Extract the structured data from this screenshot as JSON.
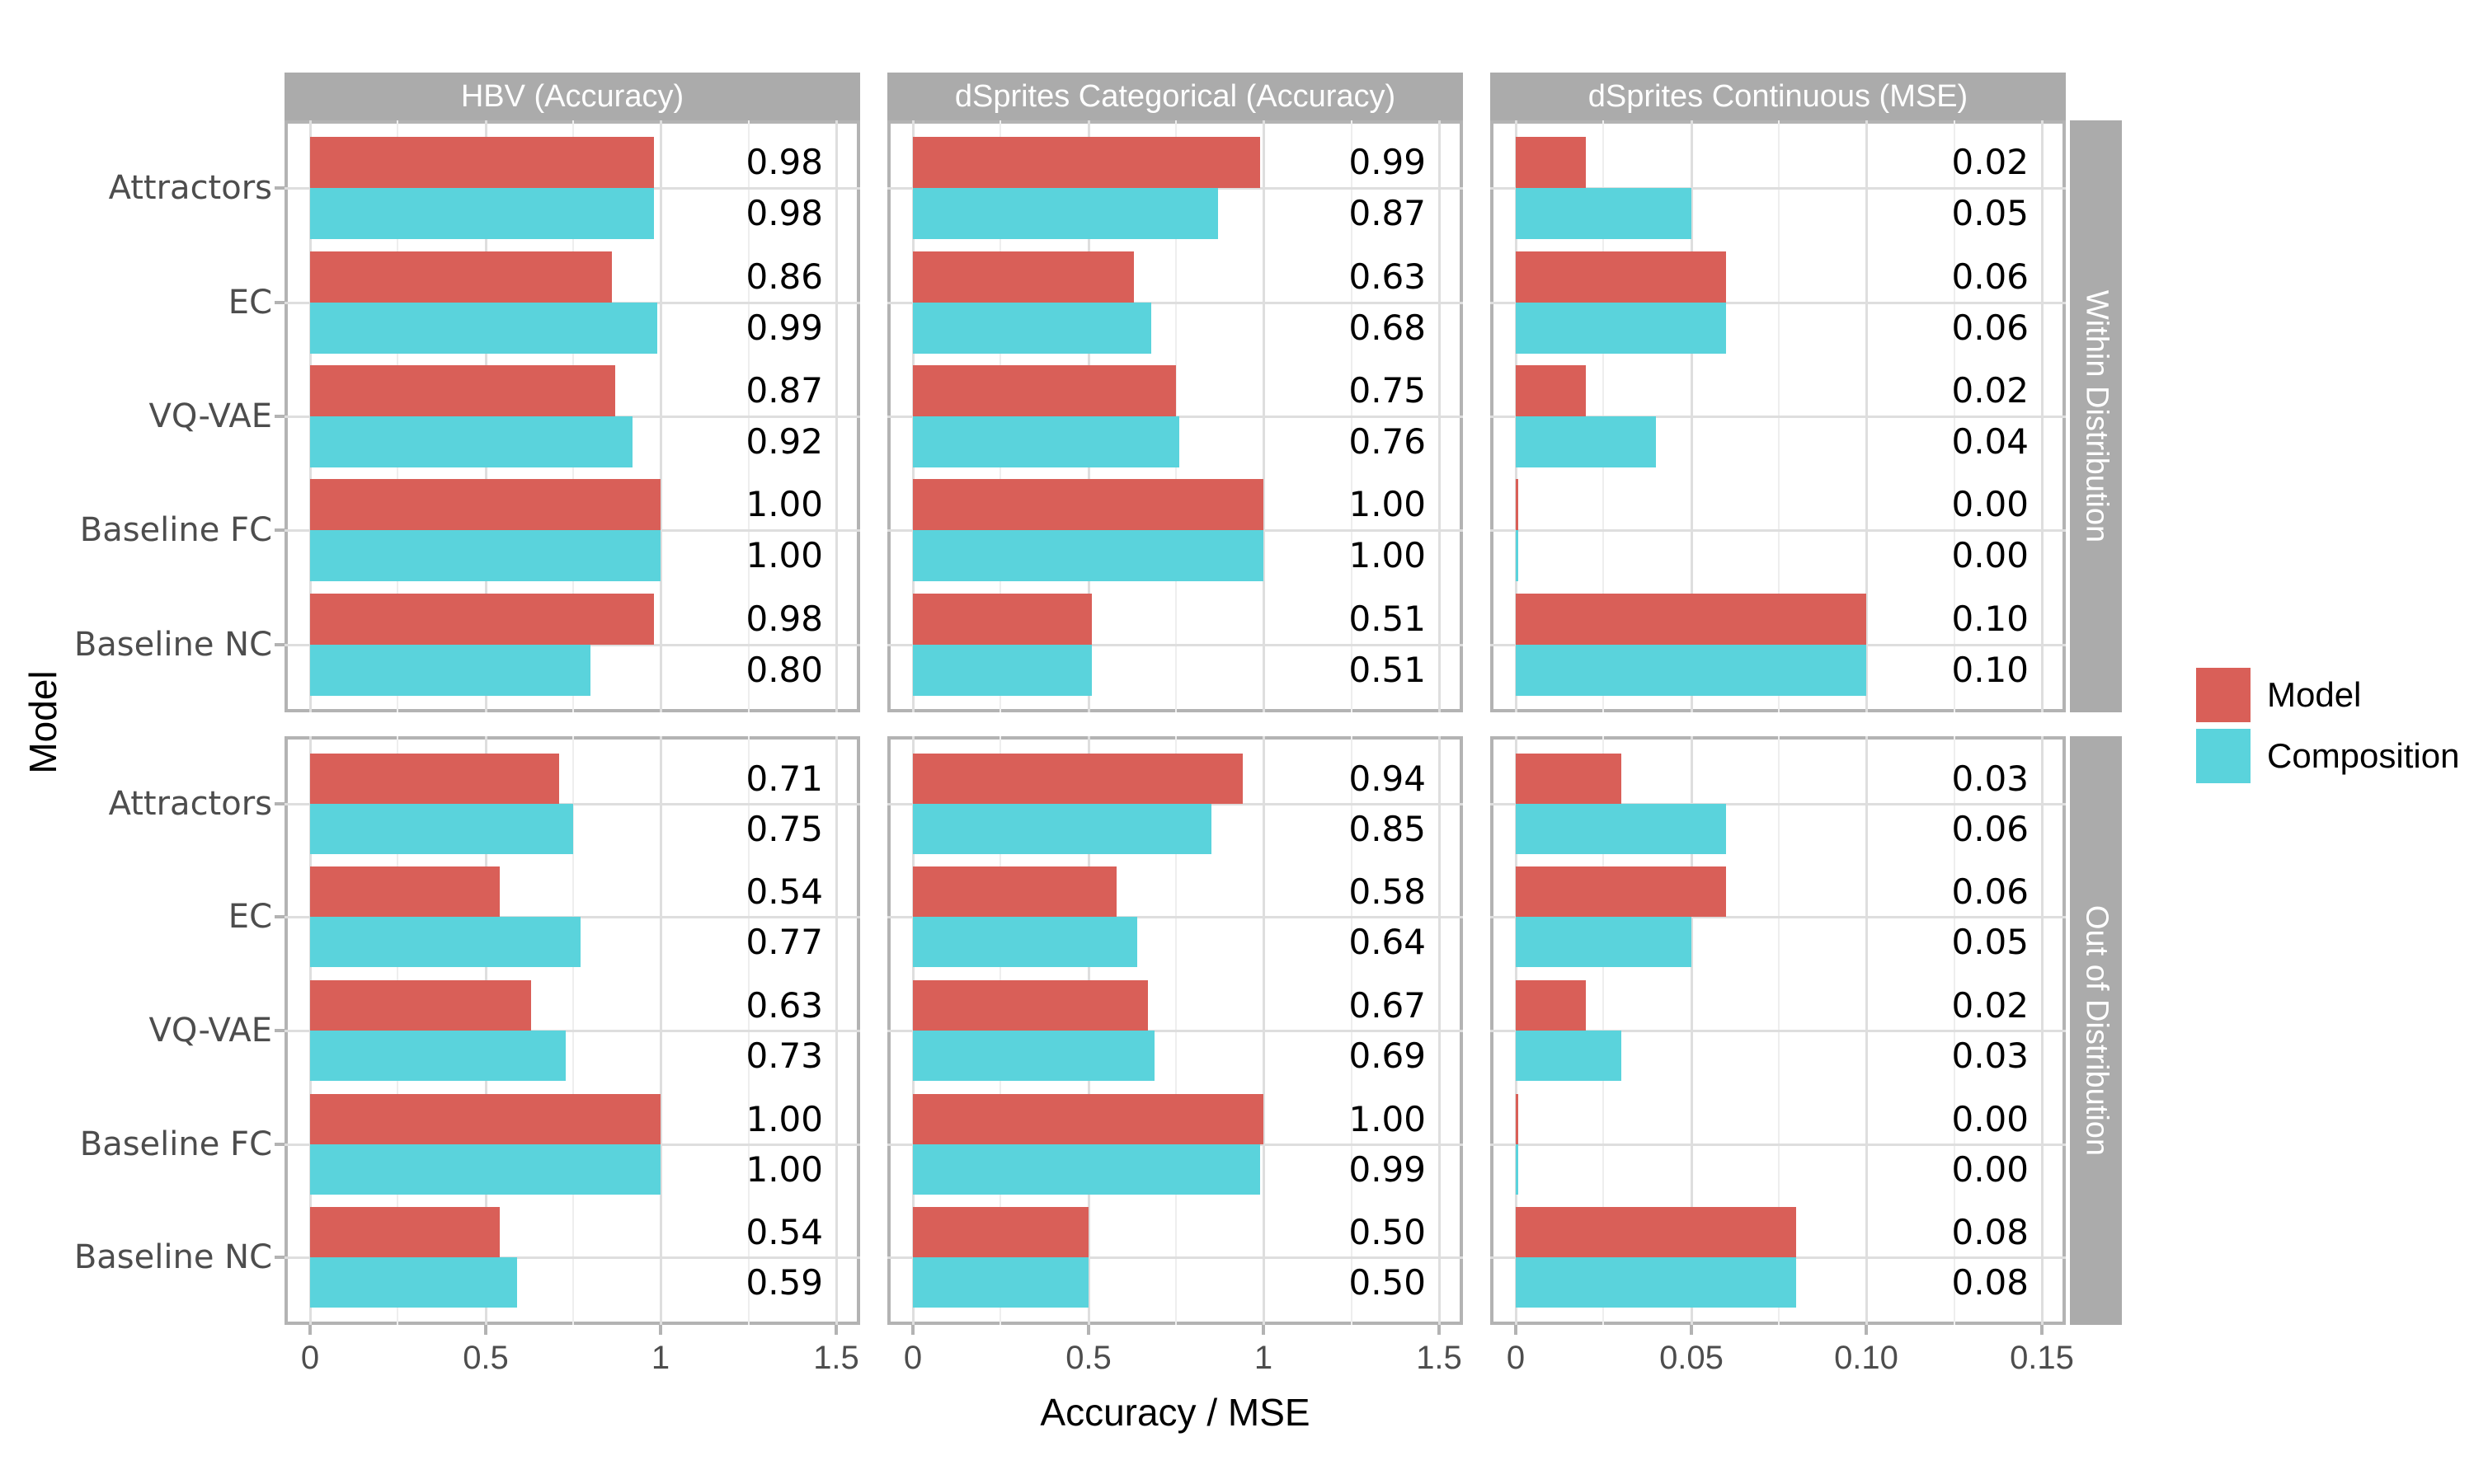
{
  "page": {
    "background": "#FFFFFF"
  },
  "axes": {
    "x_title": "Accuracy / MSE",
    "y_title": "Model"
  },
  "legend": {
    "items": [
      {
        "label": "Model",
        "color_key": "model"
      },
      {
        "label": "Composition",
        "color_key": "composition"
      }
    ]
  },
  "colors": {
    "model": "#D95F58",
    "composition": "#5AD3DC",
    "strip_bg": "#ABABAB",
    "strip_text": "#FFFFFF",
    "panel_border": "#B3B3B3",
    "grid_major": "#DEDEDE",
    "grid_minor": "#EEEEEE",
    "axis_text": "#4D4D4D",
    "value_text": "#000000"
  },
  "chart_data": {
    "type": "bar",
    "orientation": "horizontal",
    "grouping": "dodged",
    "legend_position": "right",
    "grid": true,
    "categories": [
      "Attractors",
      "EC",
      "VQ-VAE",
      "Baseline FC",
      "Baseline NC"
    ],
    "series_names": [
      "Model",
      "Composition"
    ],
    "columns": [
      {
        "title": "HBV (Accuracy)",
        "x_max": 1.5,
        "ticks": [
          {
            "v": 0,
            "label": "0"
          },
          {
            "v": 0.5,
            "label": "0.5"
          },
          {
            "v": 1,
            "label": "1"
          },
          {
            "v": 1.5,
            "label": "1.5"
          }
        ],
        "minor_ticks": [
          0.25,
          0.75,
          1.25
        ]
      },
      {
        "title": "dSprites Categorical (Accuracy)",
        "x_max": 1.5,
        "ticks": [
          {
            "v": 0,
            "label": "0"
          },
          {
            "v": 0.5,
            "label": "0.5"
          },
          {
            "v": 1,
            "label": "1"
          },
          {
            "v": 1.5,
            "label": "1.5"
          }
        ],
        "minor_ticks": [
          0.25,
          0.75,
          1.25
        ]
      },
      {
        "title": "dSprites Continuous (MSE)",
        "x_max": 0.15,
        "ticks": [
          {
            "v": 0,
            "label": "0"
          },
          {
            "v": 0.05,
            "label": "0.05"
          },
          {
            "v": 0.1,
            "label": "0.10"
          },
          {
            "v": 0.15,
            "label": "0.15"
          }
        ],
        "minor_ticks": [
          0.025,
          0.075,
          0.125
        ]
      }
    ],
    "rows": [
      {
        "title": "Within Distribution",
        "panels": [
          {
            "series": {
              "Model": [
                0.98,
                0.86,
                0.87,
                1.0,
                0.98
              ],
              "Composition": [
                0.98,
                0.99,
                0.92,
                1.0,
                0.8
              ]
            }
          },
          {
            "series": {
              "Model": [
                0.99,
                0.63,
                0.75,
                1.0,
                0.51
              ],
              "Composition": [
                0.87,
                0.68,
                0.76,
                1.0,
                0.51
              ]
            }
          },
          {
            "series": {
              "Model": [
                0.02,
                0.06,
                0.02,
                0.0,
                0.1
              ],
              "Composition": [
                0.05,
                0.06,
                0.04,
                0.0,
                0.1
              ]
            }
          }
        ]
      },
      {
        "title": "Out of Distribution",
        "panels": [
          {
            "series": {
              "Model": [
                0.71,
                0.54,
                0.63,
                1.0,
                0.54
              ],
              "Composition": [
                0.75,
                0.77,
                0.73,
                1.0,
                0.59
              ]
            }
          },
          {
            "series": {
              "Model": [
                0.94,
                0.58,
                0.67,
                1.0,
                0.5
              ],
              "Composition": [
                0.85,
                0.64,
                0.69,
                0.99,
                0.5
              ]
            }
          },
          {
            "series": {
              "Model": [
                0.03,
                0.06,
                0.02,
                0.0,
                0.08
              ],
              "Composition": [
                0.06,
                0.05,
                0.03,
                0.0,
                0.08
              ]
            }
          }
        ]
      }
    ]
  }
}
